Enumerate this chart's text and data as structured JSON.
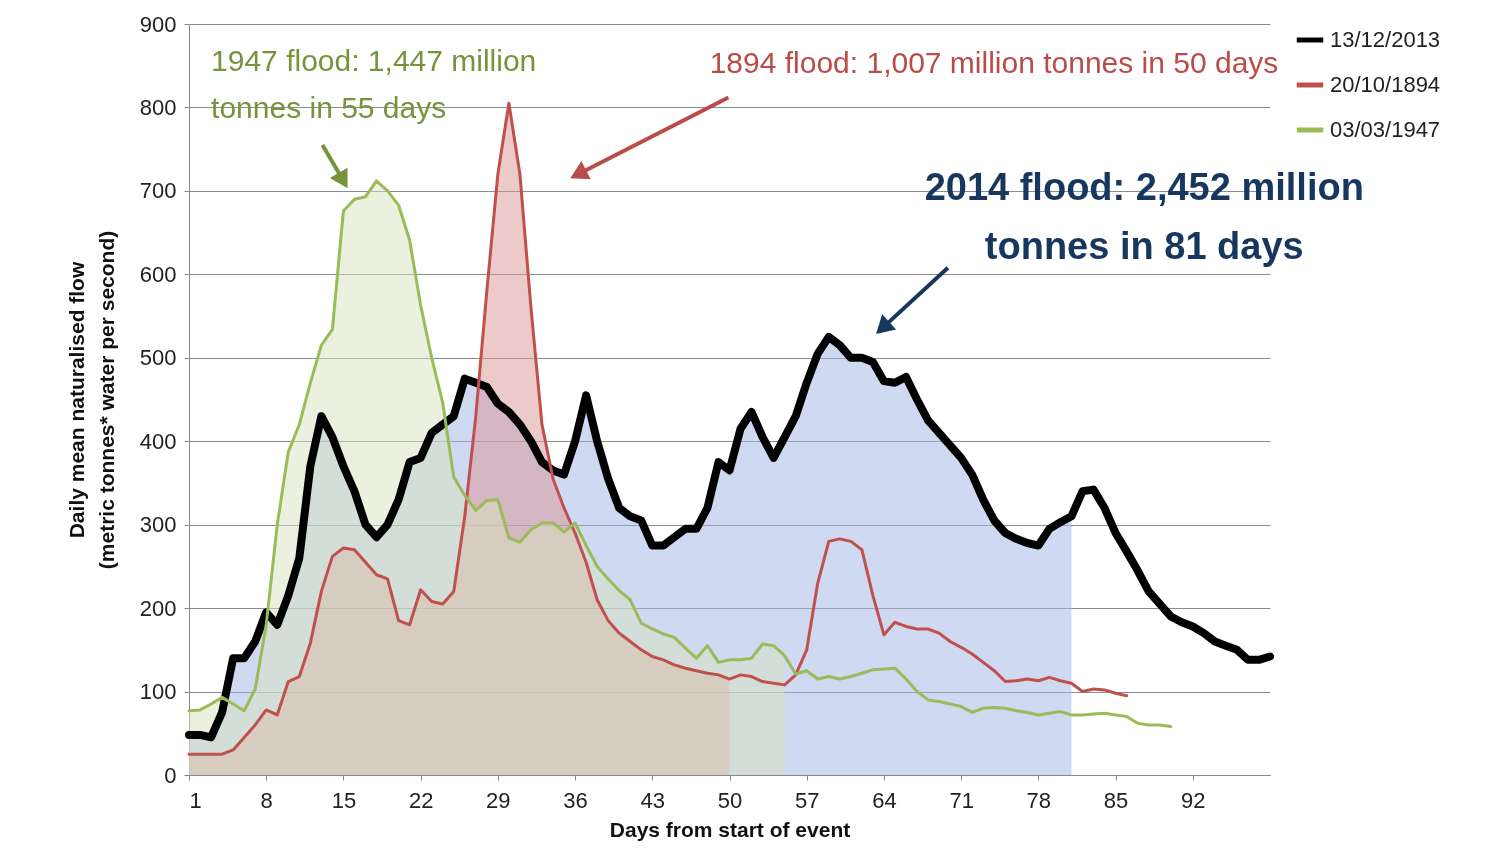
{
  "chart_data": {
    "type": "line",
    "xlabel": "Days from start of event",
    "ylabel": "Daily mean naturalised  flow\n(metric tonnes*  water per second)",
    "x": [
      1,
      2,
      3,
      4,
      5,
      6,
      7,
      8,
      9,
      10,
      11,
      12,
      13,
      14,
      15,
      16,
      17,
      18,
      19,
      20,
      21,
      22,
      23,
      24,
      25,
      26,
      27,
      28,
      29,
      30,
      31,
      32,
      33,
      34,
      35,
      36,
      37,
      38,
      39,
      40,
      41,
      42,
      43,
      44,
      45,
      46,
      47,
      48,
      49,
      50,
      51,
      52,
      53,
      54,
      55,
      56,
      57,
      58,
      59,
      60,
      61,
      62,
      63,
      64,
      65,
      66,
      67,
      68,
      69,
      70,
      71,
      72,
      73,
      74,
      75,
      76,
      77,
      78,
      79,
      80,
      81,
      82,
      83,
      84,
      85,
      86,
      87,
      88,
      89,
      90,
      91,
      92,
      93,
      94,
      95,
      96,
      97,
      98,
      99
    ],
    "series": [
      {
        "name": "13/12/2013",
        "color": "#000000",
        "values": [
          48,
          48,
          45,
          75,
          140,
          140,
          160,
          195,
          180,
          215,
          260,
          370,
          430,
          405,
          370,
          340,
          300,
          285,
          300,
          330,
          375,
          380,
          410,
          420,
          430,
          475,
          470,
          465,
          445,
          435,
          420,
          400,
          375,
          365,
          360,
          400,
          455,
          400,
          355,
          320,
          310,
          305,
          275,
          275,
          285,
          295,
          295,
          320,
          375,
          365,
          415,
          435,
          405,
          380,
          405,
          430,
          470,
          505,
          525,
          515,
          500,
          500,
          495,
          472,
          470,
          477,
          450,
          425,
          410,
          395,
          380,
          360,
          330,
          305,
          290,
          283,
          278,
          275,
          295,
          303,
          310,
          340,
          342,
          320,
          290,
          268,
          245,
          220,
          205,
          190,
          183,
          178,
          170,
          160,
          155,
          150,
          138,
          138,
          142
        ]
      },
      {
        "name": "20/10/1894",
        "color": "#c0504d",
        "values": [
          25,
          25,
          25,
          25,
          30,
          45,
          60,
          78,
          72,
          112,
          118,
          158,
          220,
          262,
          272,
          270,
          255,
          240,
          235,
          185,
          180,
          222,
          208,
          205,
          220,
          310,
          430,
          580,
          720,
          805,
          720,
          560,
          420,
          355,
          320,
          290,
          255,
          210,
          185,
          170,
          160,
          150,
          142,
          138,
          132,
          128,
          125,
          122,
          120,
          115,
          120,
          118,
          112,
          110,
          108,
          120,
          150,
          230,
          280,
          283,
          280,
          270,
          215,
          168,
          183,
          178,
          175,
          175,
          170,
          160,
          153,
          145,
          135,
          125,
          112,
          113,
          115,
          113,
          117,
          113,
          110,
          100,
          103,
          102,
          98,
          95,
          null,
          null,
          null,
          null,
          null,
          null,
          null,
          null,
          null,
          null,
          null,
          null,
          null
        ]
      },
      {
        "name": "03/03/1947",
        "color": "#9bbb59",
        "values": [
          77,
          78,
          85,
          93,
          85,
          77,
          103,
          180,
          300,
          387,
          420,
          470,
          515,
          534,
          676,
          690,
          693,
          712,
          700,
          683,
          641,
          563,
          500,
          446,
          357,
          335,
          317,
          329,
          330,
          284,
          279,
          294,
          302,
          302,
          291,
          302,
          275,
          250,
          235,
          221,
          210,
          182,
          175,
          169,
          165,
          152,
          140,
          155,
          135,
          138,
          138,
          140,
          157,
          155,
          143,
          121,
          125,
          115,
          118,
          115,
          118,
          122,
          126,
          127,
          128,
          115,
          100,
          90,
          88,
          85,
          82,
          75,
          80,
          81,
          80,
          77,
          75,
          72,
          74,
          76,
          72,
          72,
          73,
          74,
          72,
          70,
          62,
          60,
          60,
          58,
          null,
          null,
          null,
          null,
          null,
          null,
          null,
          null,
          null
        ]
      },
      {
        "type": "area",
        "color": "#9fb3e6",
        "values": [
          48,
          48,
          45,
          75,
          140,
          140,
          160,
          195,
          180,
          215,
          260,
          370,
          430,
          405,
          370,
          340,
          300,
          285,
          300,
          330,
          375,
          380,
          410,
          420,
          430,
          475,
          470,
          465,
          445,
          435,
          420,
          400,
          375,
          365,
          360,
          400,
          455,
          400,
          355,
          320,
          310,
          305,
          275,
          275,
          285,
          295,
          295,
          320,
          375,
          365,
          415,
          435,
          405,
          380,
          405,
          430,
          470,
          505,
          525,
          515,
          500,
          500,
          495,
          472,
          470,
          477,
          450,
          425,
          410,
          395,
          380,
          360,
          330,
          305,
          290,
          283,
          278,
          275,
          295,
          303,
          310,
          null,
          null,
          null,
          null,
          null,
          null,
          null,
          null,
          null,
          null,
          null,
          null,
          null,
          null,
          null,
          null,
          null,
          null
        ]
      },
      {
        "type": "area",
        "color": "#d99694",
        "values": [
          25,
          25,
          25,
          25,
          30,
          45,
          60,
          78,
          72,
          112,
          118,
          158,
          220,
          262,
          272,
          270,
          255,
          240,
          235,
          185,
          180,
          222,
          208,
          205,
          220,
          310,
          430,
          580,
          720,
          805,
          720,
          560,
          420,
          355,
          320,
          290,
          255,
          210,
          185,
          170,
          160,
          150,
          142,
          138,
          132,
          128,
          125,
          122,
          120,
          115,
          null,
          null,
          null,
          null,
          null,
          null,
          null,
          null,
          null,
          null,
          null,
          null,
          null,
          null,
          null,
          null,
          null,
          null,
          null,
          null,
          null,
          null,
          null,
          null,
          null,
          null,
          null,
          null,
          null,
          null,
          null,
          null,
          null,
          null,
          null,
          null,
          null,
          null,
          null,
          null,
          null,
          null,
          null,
          null,
          null,
          null,
          null,
          null,
          null
        ]
      },
      {
        "type": "area",
        "color": "#d7e4bd",
        "values": [
          77,
          78,
          85,
          93,
          85,
          77,
          103,
          180,
          300,
          387,
          420,
          470,
          515,
          534,
          676,
          690,
          693,
          712,
          700,
          683,
          641,
          563,
          500,
          446,
          357,
          335,
          317,
          329,
          330,
          284,
          279,
          294,
          302,
          302,
          291,
          302,
          275,
          250,
          235,
          221,
          210,
          182,
          175,
          169,
          165,
          152,
          140,
          155,
          135,
          138,
          138,
          140,
          157,
          155,
          143,
          null,
          null,
          null,
          null,
          null,
          null,
          null,
          null,
          null,
          null,
          null,
          null,
          null,
          null,
          null,
          null,
          null,
          null,
          null,
          null,
          null,
          null,
          null,
          null,
          null,
          null,
          null,
          null,
          null,
          null,
          null,
          null,
          null,
          null,
          null,
          null,
          null,
          null,
          null,
          null,
          null,
          null,
          null,
          null
        ]
      }
    ],
    "xlim": [
      1,
      99
    ],
    "xticks": [
      1,
      8,
      15,
      22,
      29,
      36,
      43,
      50,
      57,
      64,
      71,
      78,
      85,
      92
    ],
    "ylim": [
      0,
      900
    ],
    "yticks": [
      0,
      100,
      200,
      300,
      400,
      500,
      600,
      700,
      800,
      900
    ],
    "grid": "y",
    "legend": "right",
    "annotations": [
      "1947 flood: 1,447 million\ntonnes in 55 days",
      "1894 flood: 1,007 million tonnes in 50 days",
      "2014 flood: 2,452 million\ntonnes in 81 days"
    ]
  }
}
